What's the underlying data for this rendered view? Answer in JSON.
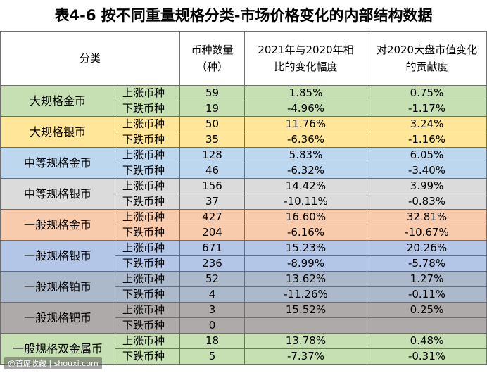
{
  "title": "表4-6  按不同重量规格分类-市场价格变化的内部结构数据",
  "headers": {
    "category": "分类",
    "count": "币种数量（种）",
    "change": "2021年与2020年相比的变化幅度",
    "contribution": "对2020大盘市值变化的贡献度"
  },
  "groups": [
    {
      "name": "大规格金币",
      "color": "#c6e0b4",
      "rows": [
        {
          "type": "上涨币种",
          "count": "59",
          "change": "1.85%",
          "contrib": "0.75%"
        },
        {
          "type": "下跌币种",
          "count": "19",
          "change": "-4.96%",
          "contrib": "-1.17%"
        }
      ]
    },
    {
      "name": "大规格银币",
      "color": "#ffe699",
      "rows": [
        {
          "type": "上涨币种",
          "count": "50",
          "change": "11.76%",
          "contrib": "3.24%"
        },
        {
          "type": "下跌币种",
          "count": "35",
          "change": "-6.36%",
          "contrib": "-1.16%"
        }
      ]
    },
    {
      "name": "中等规格金币",
      "color": "#bdd7ee",
      "rows": [
        {
          "type": "上涨币种",
          "count": "128",
          "change": "5.83%",
          "contrib": "6.05%"
        },
        {
          "type": "下跌币种",
          "count": "46",
          "change": "-6.32%",
          "contrib": "-3.40%"
        }
      ]
    },
    {
      "name": "中等规格银币",
      "color": "#dbdbdb",
      "rows": [
        {
          "type": "上涨币种",
          "count": "156",
          "change": "14.42%",
          "contrib": "3.99%"
        },
        {
          "type": "下跌币种",
          "count": "37",
          "change": "-10.11%",
          "contrib": "-0.83%"
        }
      ]
    },
    {
      "name": "一般规格金币",
      "color": "#f8cbad",
      "rows": [
        {
          "type": "上涨币种",
          "count": "427",
          "change": "16.60%",
          "contrib": "32.81%"
        },
        {
          "type": "下跌币种",
          "count": "204",
          "change": "-6.16%",
          "contrib": "-10.67%"
        }
      ]
    },
    {
      "name": "一般规格银币",
      "color": "#b4c6e7",
      "rows": [
        {
          "type": "上涨币种",
          "count": "671",
          "change": "15.23%",
          "contrib": "20.26%"
        },
        {
          "type": "下跌币种",
          "count": "236",
          "change": "-8.99%",
          "contrib": "-5.78%"
        }
      ]
    },
    {
      "name": "一般规格铂币",
      "color": "#acb9ca",
      "rows": [
        {
          "type": "上涨币种",
          "count": "52",
          "change": "13.62%",
          "contrib": "1.27%"
        },
        {
          "type": "下跌币种",
          "count": "4",
          "change": "-11.26%",
          "contrib": "-0.11%"
        }
      ]
    },
    {
      "name": "一般规格钯币",
      "color": "#aeaaaa",
      "rows": [
        {
          "type": "上涨币种",
          "count": "3",
          "change": "15.52%",
          "contrib": "0.25%"
        },
        {
          "type": "下跌币种",
          "count": "0",
          "change": "",
          "contrib": ""
        }
      ]
    },
    {
      "name": "一般规格双金属币",
      "color": "#c6e0b4",
      "rows": [
        {
          "type": "上涨币种",
          "count": "18",
          "change": "13.78%",
          "contrib": "0.48%"
        },
        {
          "type": "下跌币种",
          "count": "5",
          "change": "-7.37%",
          "contrib": "-0.31%"
        }
      ]
    }
  ],
  "watermark": "@首席收藏 | shouxi.com"
}
